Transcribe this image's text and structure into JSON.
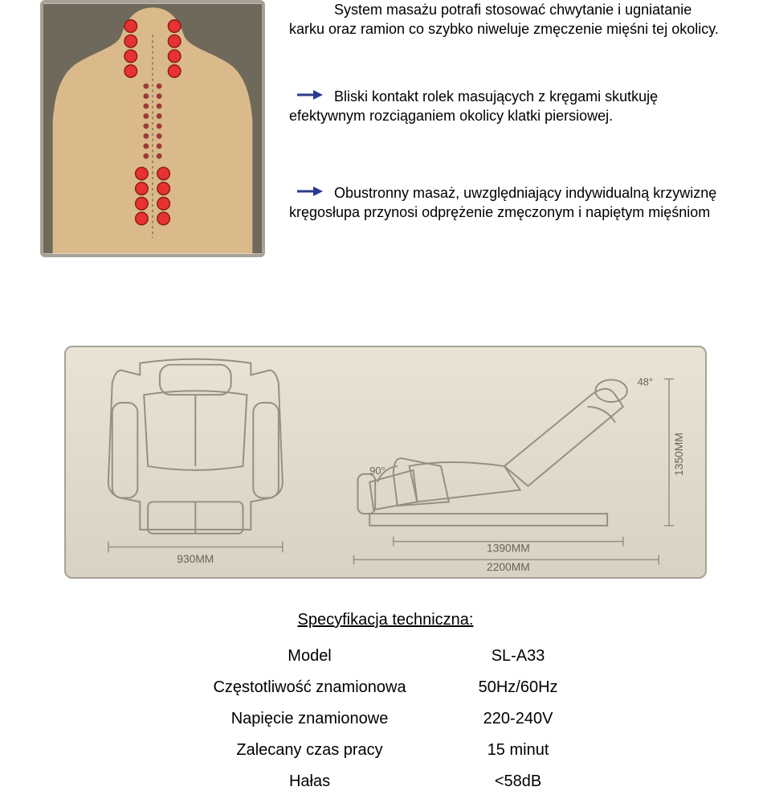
{
  "paragraphs": {
    "p1_line1": "System masażu potrafi stosować chwytanie i ugniatanie",
    "p1_line2": "karku oraz ramion co szybko niweluje zmęczenie mięśni tej okolicy.",
    "p2_line1": "Bliski kontakt rolek masujących z kręgami skutkuję",
    "p2_line2": "efektywnym rozciąganiem okolicy klatki piersiowej.",
    "p3_line1": "Obustronny masaż, uwzględniający indywidualną krzywiznę",
    "p3_line2": "kręgosłupa przynosi odprężenie zmęczonym i napiętym mięśniom"
  },
  "body_figure": {
    "bg_color": "#6f695c",
    "skin_color": "#dab98a",
    "dot_fill": "#e73232",
    "dot_stroke": "#8a1a1a",
    "dot_small_fill": "#9a3a3a",
    "spine_line": "#7a6f5e",
    "pairs_bold": [
      [
        0.4,
        0.09,
        0.6,
        0.09
      ],
      [
        0.4,
        0.15,
        0.6,
        0.15
      ],
      [
        0.4,
        0.21,
        0.6,
        0.21
      ],
      [
        0.4,
        0.27,
        0.6,
        0.27
      ],
      [
        0.45,
        0.68,
        0.55,
        0.68
      ],
      [
        0.45,
        0.74,
        0.55,
        0.74
      ],
      [
        0.45,
        0.8,
        0.55,
        0.8
      ],
      [
        0.45,
        0.86,
        0.55,
        0.86
      ]
    ],
    "pairs_small_y": [
      0.33,
      0.37,
      0.41,
      0.45,
      0.49,
      0.53,
      0.57,
      0.61
    ]
  },
  "diagram": {
    "bg_grad_top": "#e9e3d6",
    "bg_grad_bot": "#d8d2c3",
    "stroke": "#968f7e",
    "label_48": "48°",
    "label_90": "90°",
    "dim_930": "930MM",
    "dim_1390": "1390MM",
    "dim_2200": "2200MM",
    "dim_1350": "1350MM"
  },
  "spec": {
    "title": "Specyfikacja techniczna:",
    "rows": [
      {
        "label": "Model",
        "value": "SL-A33"
      },
      {
        "label": "Częstotliwość znamionowa",
        "value": "50Hz/60Hz"
      },
      {
        "label": "Napięcie znamionowe",
        "value": "220-240V"
      },
      {
        "label": "Zalecany czas pracy",
        "value": "15 minut"
      },
      {
        "label": "Hałas",
        "value": "<58dB"
      }
    ]
  },
  "colors": {
    "text": "#000000",
    "arrow": "#2a3a8f",
    "panel_border": "#a8a296"
  }
}
